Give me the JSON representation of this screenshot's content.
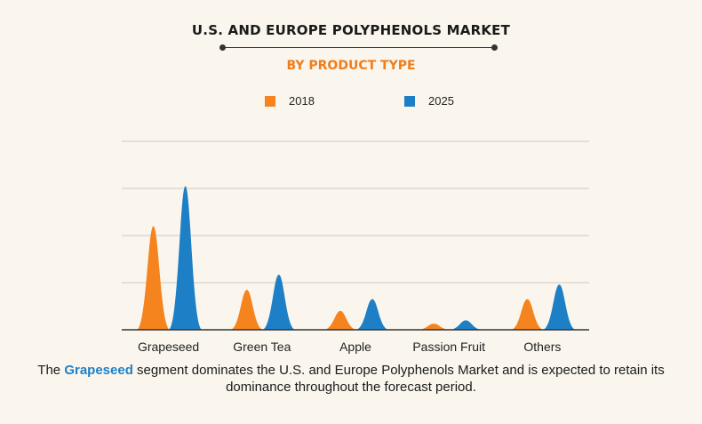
{
  "header": {
    "title": "U.S. AND EUROPE POLYPHENOLS MARKET",
    "subtitle": "BY PRODUCT TYPE"
  },
  "colors": {
    "series_2018": "#f5841f",
    "series_2025": "#1d7fc6",
    "highlight": "#1f80c4",
    "grid": "#cfcac0",
    "axis": "#333333"
  },
  "chart_data": {
    "type": "area",
    "title": "U.S. AND EUROPE POLYPHENOLS MARKET",
    "subtitle": "BY PRODUCT TYPE",
    "categories": [
      "Grapeseed",
      "Green Tea",
      "Apple",
      "Passion Fruit",
      "Others"
    ],
    "series": [
      {
        "name": "2018",
        "values": [
          2.2,
          0.85,
          0.4,
          0.13,
          0.65
        ]
      },
      {
        "name": "2025",
        "values": [
          3.05,
          1.17,
          0.65,
          0.2,
          0.96
        ]
      }
    ],
    "ylim": [
      0,
      4
    ],
    "grid": true,
    "y_tick_labels_shown": false,
    "legend": "top-center"
  },
  "caption": {
    "before": "The ",
    "highlight": "Grapeseed",
    "after": " segment dominates the U.S. and Europe Polyphenols Market and is expected to retain its dominance throughout the forecast period."
  }
}
